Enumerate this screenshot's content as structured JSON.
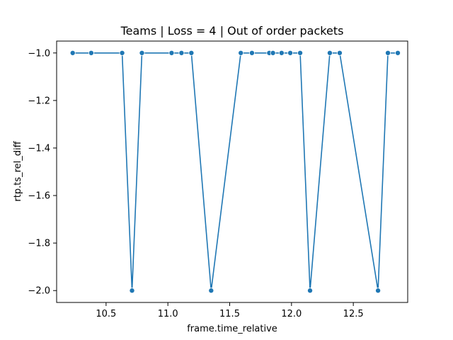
{
  "chart_data": {
    "type": "line",
    "title": "Teams | Loss = 4 | Out of order packets",
    "xlabel": "frame.time_relative",
    "ylabel": "rtp.ts_rel_diff",
    "xlim": [
      10.1,
      12.94
    ],
    "ylim": [
      -2.05,
      -0.95
    ],
    "xticks": [
      10.5,
      11.0,
      11.5,
      12.0,
      12.5
    ],
    "xtick_labels": [
      "10.5",
      "11.0",
      "11.5",
      "12.0",
      "12.5"
    ],
    "yticks": [
      -1.0,
      -1.2,
      -1.4,
      -1.6,
      -1.8,
      -2.0
    ],
    "ytick_labels": [
      "−1.0",
      "−1.2",
      "−1.4",
      "−1.6",
      "−1.8",
      "−2.0"
    ],
    "grid": false,
    "markers": true,
    "series": [
      {
        "color": "#1f77b4",
        "x": [
          10.23,
          10.38,
          10.63,
          10.71,
          10.79,
          11.03,
          11.11,
          11.19,
          11.35,
          11.59,
          11.68,
          11.82,
          11.85,
          11.92,
          11.99,
          12.07,
          12.15,
          12.31,
          12.39,
          12.7,
          12.78,
          12.86
        ],
        "y": [
          -1,
          -1,
          -1,
          -2,
          -1,
          -1,
          -1,
          -1,
          -2,
          -1,
          -1,
          -1,
          -1,
          -1,
          -1,
          -1,
          -2,
          -1,
          -1,
          -2,
          -1,
          -1
        ]
      }
    ]
  }
}
